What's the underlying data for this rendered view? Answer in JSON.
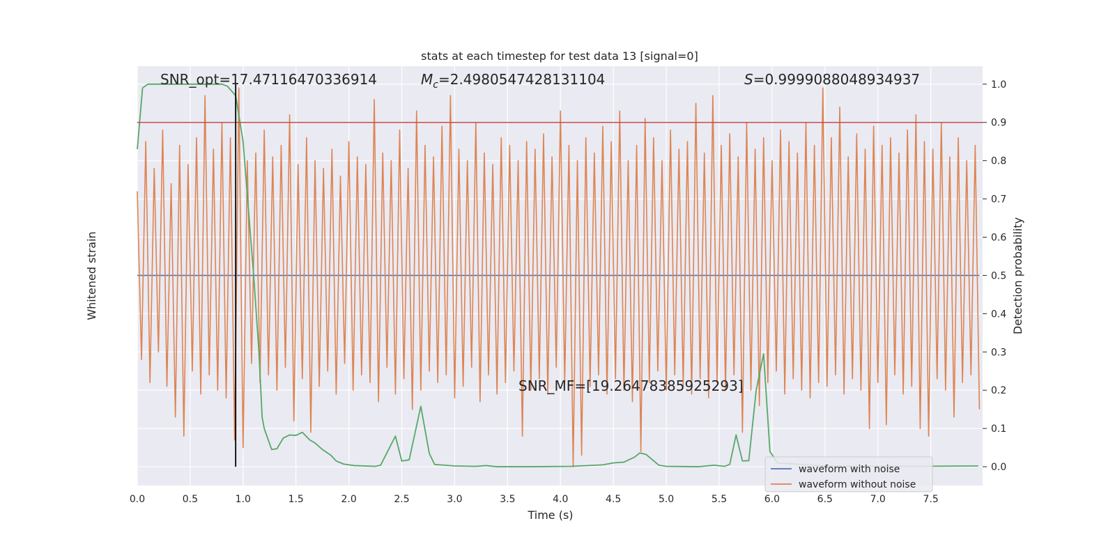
{
  "chart_data": {
    "type": "line",
    "title": "stats at each timestep for test data 13 [signal=0]",
    "xlabel": "Time (s)",
    "ylabel": "Whitened strain",
    "y2label": "Detection probability",
    "xlim": [
      0,
      7.99
    ],
    "xticks": [
      {
        "value": 0,
        "label": "0.0"
      },
      0.5,
      {
        "value": 1,
        "label": "1.0"
      },
      1.5,
      {
        "value": 2,
        "label": "2.0"
      },
      2.5,
      {
        "value": 3,
        "label": "3.0"
      },
      3.5,
      {
        "value": 4,
        "label": "4.0"
      },
      4.5,
      {
        "value": 5,
        "label": "5.0"
      },
      5.5,
      {
        "value": 6,
        "label": "6.0"
      },
      6.5,
      {
        "value": 7,
        "label": "7.0"
      },
      7.5
    ],
    "ylim": [
      -0.049,
      1.047
    ],
    "y2lim": [
      -0.049,
      1.047
    ],
    "y2ticks": [
      {
        "value": 0,
        "label": "0.0"
      },
      0.1,
      0.2,
      0.3,
      0.4,
      0.5,
      0.6,
      0.7,
      0.8,
      0.9,
      {
        "value": 1,
        "label": "1.0"
      }
    ],
    "grid": true,
    "legend": "lower right",
    "annotations": {
      "snr_opt": "SNR_opt=17.47116470336914",
      "mc": {
        "symbol": "M",
        "subscript": "c",
        "text": "=2.4980547428131104"
      },
      "s": {
        "symbol": "S",
        "text": "=0.9999088048934937"
      },
      "snr_mf": "SNR_MF=[19.26478385925293]"
    },
    "threshold": {
      "value": 0.9,
      "color": "#c44e52"
    },
    "vline": {
      "x": 0.93,
      "ymin": 0,
      "ymax": 1,
      "color": "#000000"
    },
    "series": [
      {
        "name": "waveform with noise",
        "color": "#4c72b0",
        "axis": "y",
        "x": [
          0,
          7.96
        ],
        "values": [
          0.5,
          0.5
        ]
      },
      {
        "name": "waveform without noise",
        "color": "#dd8452",
        "axis": "y",
        "x": [
          0,
          0.04,
          0.08,
          0.12,
          0.16,
          0.2,
          0.24,
          0.28,
          0.32,
          0.36,
          0.4,
          0.44,
          0.48,
          0.52,
          0.56,
          0.6,
          0.64,
          0.68,
          0.72,
          0.76,
          0.8,
          0.84,
          0.88,
          0.92,
          0.96,
          1,
          1.04,
          1.08,
          1.12,
          1.16,
          1.2,
          1.24,
          1.28,
          1.32,
          1.36,
          1.4,
          1.44,
          1.48,
          1.52,
          1.56,
          1.6,
          1.64,
          1.68,
          1.72,
          1.76,
          1.8,
          1.84,
          1.88,
          1.92,
          1.96,
          2,
          2.04,
          2.08,
          2.12,
          2.16,
          2.2,
          2.24,
          2.28,
          2.32,
          2.36,
          2.4,
          2.44,
          2.48,
          2.52,
          2.56,
          2.6,
          2.64,
          2.68,
          2.72,
          2.76,
          2.8,
          2.84,
          2.88,
          2.92,
          2.96,
          3,
          3.04,
          3.08,
          3.12,
          3.16,
          3.2,
          3.24,
          3.28,
          3.32,
          3.36,
          3.4,
          3.44,
          3.48,
          3.52,
          3.56,
          3.6,
          3.64,
          3.68,
          3.72,
          3.76,
          3.8,
          3.84,
          3.88,
          3.92,
          3.96,
          4,
          4.04,
          4.08,
          4.12,
          4.16,
          4.2,
          4.24,
          4.28,
          4.32,
          4.36,
          4.4,
          4.44,
          4.48,
          4.52,
          4.56,
          4.6,
          4.64,
          4.68,
          4.72,
          4.76,
          4.8,
          4.84,
          4.88,
          4.92,
          4.96,
          5,
          5.04,
          5.08,
          5.12,
          5.16,
          5.2,
          5.24,
          5.28,
          5.32,
          5.36,
          5.4,
          5.44,
          5.48,
          5.52,
          5.56,
          5.6,
          5.64,
          5.68,
          5.72,
          5.76,
          5.8,
          5.84,
          5.88,
          5.92,
          5.96,
          6,
          6.04,
          6.08,
          6.12,
          6.16,
          6.2,
          6.24,
          6.28,
          6.32,
          6.36,
          6.4,
          6.44,
          6.48,
          6.52,
          6.56,
          6.6,
          6.64,
          6.68,
          6.72,
          6.76,
          6.8,
          6.84,
          6.88,
          6.92,
          6.96,
          7,
          7.04,
          7.08,
          7.12,
          7.16,
          7.2,
          7.24,
          7.28,
          7.32,
          7.36,
          7.4,
          7.44,
          7.48,
          7.52,
          7.56,
          7.6,
          7.64,
          7.68,
          7.72,
          7.76,
          7.8,
          7.84,
          7.88,
          7.92,
          7.96
        ],
        "values": [
          0.72,
          0.28,
          0.85,
          0.22,
          0.78,
          0.3,
          0.88,
          0.21,
          0.74,
          0.13,
          0.84,
          0.08,
          0.79,
          0.25,
          0.86,
          0.19,
          0.97,
          0.24,
          0.83,
          0.2,
          0.9,
          0.18,
          0.86,
          0.07,
          0.99,
          0.05,
          0.8,
          0.27,
          0.82,
          0.22,
          0.88,
          0.24,
          0.81,
          0.2,
          0.84,
          0.26,
          0.92,
          0.12,
          0.79,
          0.23,
          0.86,
          0.09,
          0.8,
          0.21,
          0.78,
          0.25,
          0.83,
          0.19,
          0.76,
          0.27,
          0.85,
          0.2,
          0.81,
          0.24,
          0.79,
          0.22,
          0.96,
          0.17,
          0.82,
          0.26,
          0.8,
          0.19,
          0.88,
          0.23,
          0.78,
          0.15,
          0.93,
          0.2,
          0.84,
          0.25,
          0.81,
          0.22,
          0.89,
          0.24,
          0.97,
          0.18,
          0.83,
          0.21,
          0.8,
          0.26,
          0.9,
          0.17,
          0.82,
          0.24,
          0.79,
          0.19,
          0.86,
          0.22,
          0.84,
          0.25,
          0.8,
          0.08,
          0.85,
          0.2,
          0.83,
          0.23,
          0.87,
          0.19,
          0.81,
          0.26,
          0.93,
          0.22,
          0.84,
          0,
          0.8,
          0.03,
          0.86,
          0.21,
          0.82,
          0.24,
          0.89,
          0.19,
          0.85,
          0.23,
          0.93,
          0.2,
          0.8,
          0.17,
          0.84,
          0.04,
          0.91,
          0.22,
          0.86,
          0.25,
          0.8,
          0.2,
          0.88,
          0.24,
          0.83,
          0.21,
          0.85,
          0.19,
          0.95,
          0.23,
          0.82,
          0.18,
          0.97,
          0.22,
          0.84,
          0.2,
          0.87,
          0.24,
          0.81,
          0.09,
          0.9,
          0.2,
          0.83,
          0.16,
          0.86,
          0.22,
          0.8,
          0.25,
          0.88,
          0.19,
          0.85,
          0.23,
          0.82,
          0.2,
          0.9,
          0.18,
          0.84,
          0.22,
          0.99,
          0.21,
          0.86,
          0.24,
          0.94,
          0.19,
          0.81,
          0.23,
          0.87,
          0.2,
          0.83,
          0.1,
          0.89,
          0.22,
          0.84,
          0.11,
          0.86,
          0.24,
          0.82,
          0.19,
          0.88,
          0.21,
          0.92,
          0.1,
          0.85,
          0.08,
          0.83,
          0.23,
          0.9,
          0.2,
          0.81,
          0.13,
          0.86,
          0.22,
          0.8,
          0.24,
          0.84,
          0.15
        ]
      },
      {
        "name": "Detection probability",
        "color": "#55a868",
        "axis": "y2",
        "x": [
          0,
          0.05,
          0.1,
          0.2,
          0.4,
          0.6,
          0.8,
          0.85,
          0.93,
          1,
          1.1,
          1.15,
          1.18,
          1.2,
          1.27,
          1.32,
          1.38,
          1.44,
          1.5,
          1.56,
          1.63,
          1.68,
          1.75,
          1.83,
          1.88,
          1.95,
          2.05,
          2.25,
          2.3,
          2.44,
          2.5,
          2.57,
          2.68,
          2.76,
          2.81,
          3,
          3.2,
          3.3,
          3.4,
          3.7,
          4.1,
          4.4,
          4.5,
          4.6,
          4.7,
          4.75,
          4.81,
          4.87,
          4.93,
          5,
          5.3,
          5.45,
          5.55,
          5.6,
          5.66,
          5.72,
          5.78,
          5.85,
          5.92,
          5.98,
          6.05,
          6.5,
          7.3,
          7.95
        ],
        "values": [
          0.83,
          0.99,
          1,
          1,
          1,
          1,
          1,
          0.995,
          0.97,
          0.85,
          0.5,
          0.3,
          0.13,
          0.1,
          0.045,
          0.047,
          0.075,
          0.083,
          0.082,
          0.09,
          0.07,
          0.062,
          0.045,
          0.03,
          0.015,
          0.007,
          0.003,
          0.001,
          0.004,
          0.08,
          0.015,
          0.018,
          0.158,
          0.035,
          0.006,
          0.002,
          0.001,
          0.003,
          0,
          0,
          0.001,
          0.005,
          0.01,
          0.012,
          0.025,
          0.036,
          0.032,
          0.018,
          0.004,
          0.001,
          0,
          0.004,
          0.001,
          0.006,
          0.083,
          0.015,
          0.016,
          0.2,
          0.295,
          0.04,
          0.01,
          0.002,
          0.001,
          0.002
        ]
      }
    ]
  }
}
